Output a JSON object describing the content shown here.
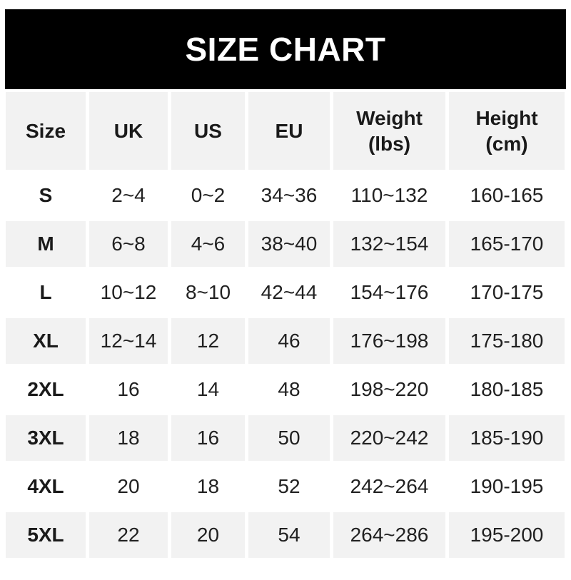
{
  "banner": {
    "title": "SIZE CHART"
  },
  "colors": {
    "banner_bg": "#000000",
    "banner_text": "#ffffff",
    "row_alt_bg": "#f2f2f2",
    "row_bg": "#ffffff",
    "header_text": "#1a1a1a",
    "body_text": "#212121"
  },
  "table": {
    "columns": [
      {
        "label": "Size"
      },
      {
        "label": "UK"
      },
      {
        "label": "US"
      },
      {
        "label": "EU"
      },
      {
        "label": "Weight\n(lbs)"
      },
      {
        "label": "Height\n(cm)"
      }
    ],
    "rows": [
      [
        "S",
        "2~4",
        "0~2",
        "34~36",
        "110~132",
        "160-165"
      ],
      [
        "M",
        "6~8",
        "4~6",
        "38~40",
        "132~154",
        "165-170"
      ],
      [
        "L",
        "10~12",
        "8~10",
        "42~44",
        "154~176",
        "170-175"
      ],
      [
        "XL",
        "12~14",
        "12",
        "46",
        "176~198",
        "175-180"
      ],
      [
        "2XL",
        "16",
        "14",
        "48",
        "198~220",
        "180-185"
      ],
      [
        "3XL",
        "18",
        "16",
        "50",
        "220~242",
        "185-190"
      ],
      [
        "4XL",
        "20",
        "18",
        "52",
        "242~264",
        "190-195"
      ],
      [
        "5XL",
        "22",
        "20",
        "54",
        "264~286",
        "195-200"
      ]
    ]
  },
  "chart_data": {
    "type": "table",
    "title": "SIZE CHART",
    "columns": [
      "Size",
      "UK",
      "US",
      "EU",
      "Weight (lbs)",
      "Height (cm)"
    ],
    "rows": [
      [
        "S",
        "2~4",
        "0~2",
        "34~36",
        "110~132",
        "160-165"
      ],
      [
        "M",
        "6~8",
        "4~6",
        "38~40",
        "132~154",
        "165-170"
      ],
      [
        "L",
        "10~12",
        "8~10",
        "42~44",
        "154~176",
        "170-175"
      ],
      [
        "XL",
        "12~14",
        "12",
        "46",
        "176~198",
        "175-180"
      ],
      [
        "2XL",
        "16",
        "14",
        "48",
        "198~220",
        "180-185"
      ],
      [
        "3XL",
        "18",
        "16",
        "50",
        "220~242",
        "185-190"
      ],
      [
        "4XL",
        "20",
        "18",
        "52",
        "242~264",
        "190-195"
      ],
      [
        "5XL",
        "22",
        "20",
        "54",
        "264~286",
        "195-200"
      ]
    ]
  }
}
